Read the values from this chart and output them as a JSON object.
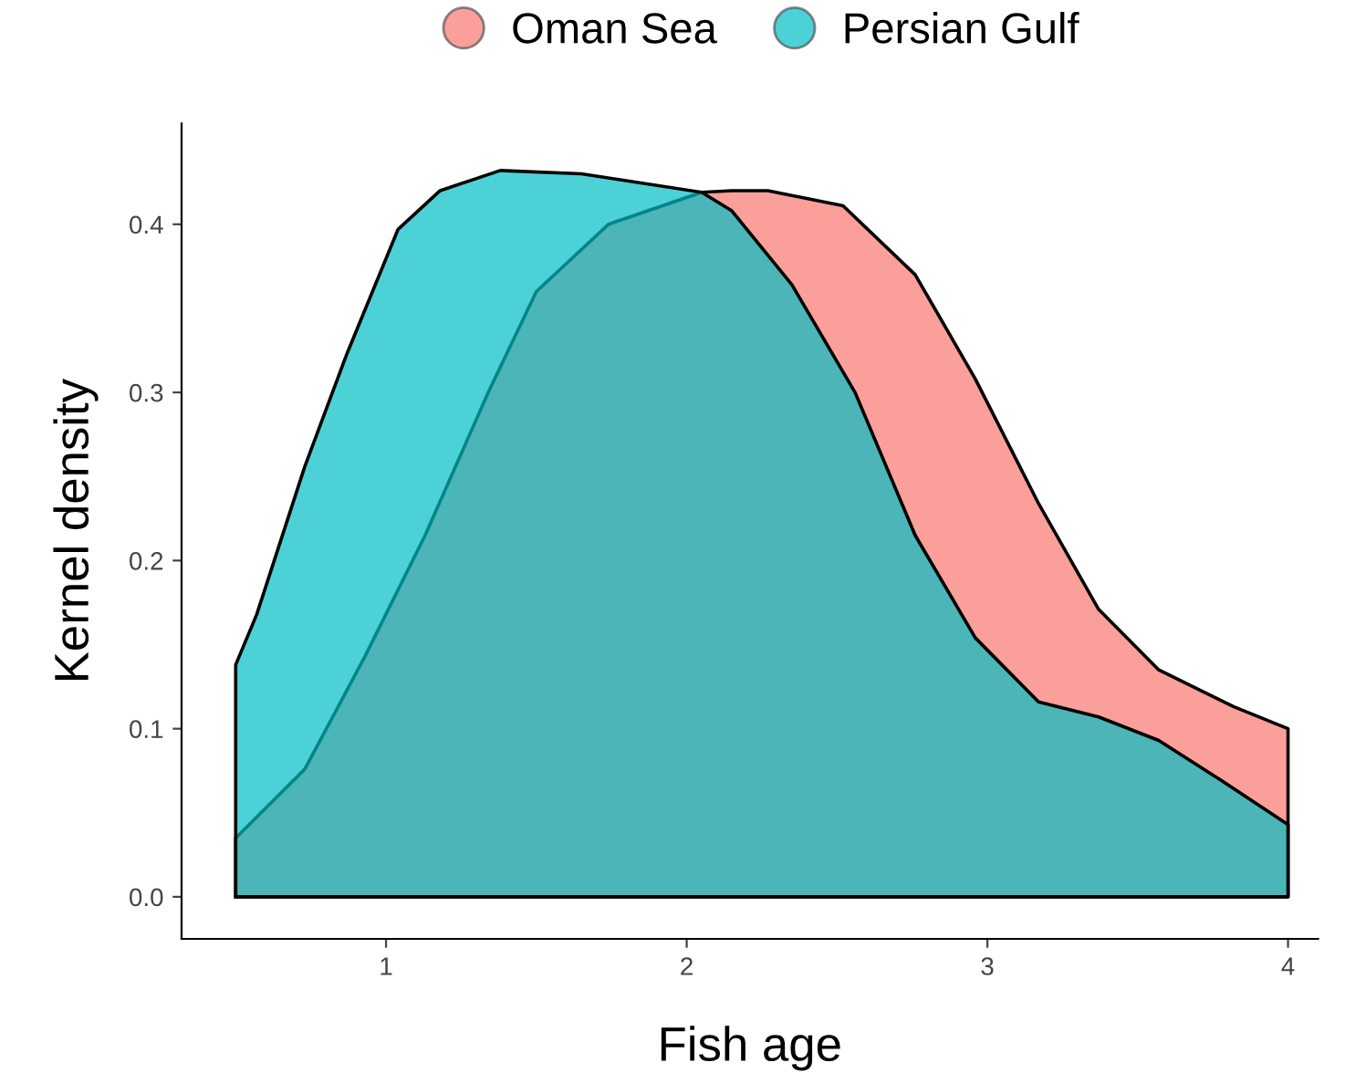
{
  "chart_data": {
    "type": "area",
    "xlabel": "Fish age",
    "ylabel": "Kernel density",
    "series": [
      {
        "name": "Oman Sea",
        "color": "#f8766d",
        "x": [
          0.5,
          0.73,
          0.93,
          1.13,
          1.34,
          1.5,
          1.74,
          2.05,
          2.15,
          2.27,
          2.52,
          2.76,
          2.96,
          3.17,
          3.37,
          3.57,
          3.82,
          4.0
        ],
        "values": [
          0.035,
          0.076,
          0.143,
          0.215,
          0.3,
          0.36,
          0.4,
          0.419,
          0.42,
          0.42,
          0.411,
          0.37,
          0.308,
          0.234,
          0.171,
          0.135,
          0.113,
          0.1
        ]
      },
      {
        "name": "Persian Gulf",
        "color": "#00bfc4",
        "x": [
          0.5,
          0.57,
          0.73,
          0.87,
          1.04,
          1.18,
          1.38,
          1.65,
          2.05,
          2.15,
          2.35,
          2.56,
          2.76,
          2.96,
          3.17,
          3.37,
          3.57,
          3.78,
          4.0
        ],
        "values": [
          0.138,
          0.168,
          0.256,
          0.323,
          0.397,
          0.42,
          0.432,
          0.43,
          0.419,
          0.408,
          0.364,
          0.3,
          0.215,
          0.154,
          0.116,
          0.107,
          0.093,
          0.069,
          0.043
        ]
      }
    ],
    "xlim": [
      0.32,
      4.1
    ],
    "ylim": [
      -0.025,
      0.46
    ],
    "xticks": [
      1,
      2,
      3,
      4
    ],
    "yticks": [
      {
        "value": 0,
        "label": "0.0"
      },
      0.1,
      0.2,
      0.3,
      0.4
    ],
    "grid": false,
    "legend": "top"
  }
}
